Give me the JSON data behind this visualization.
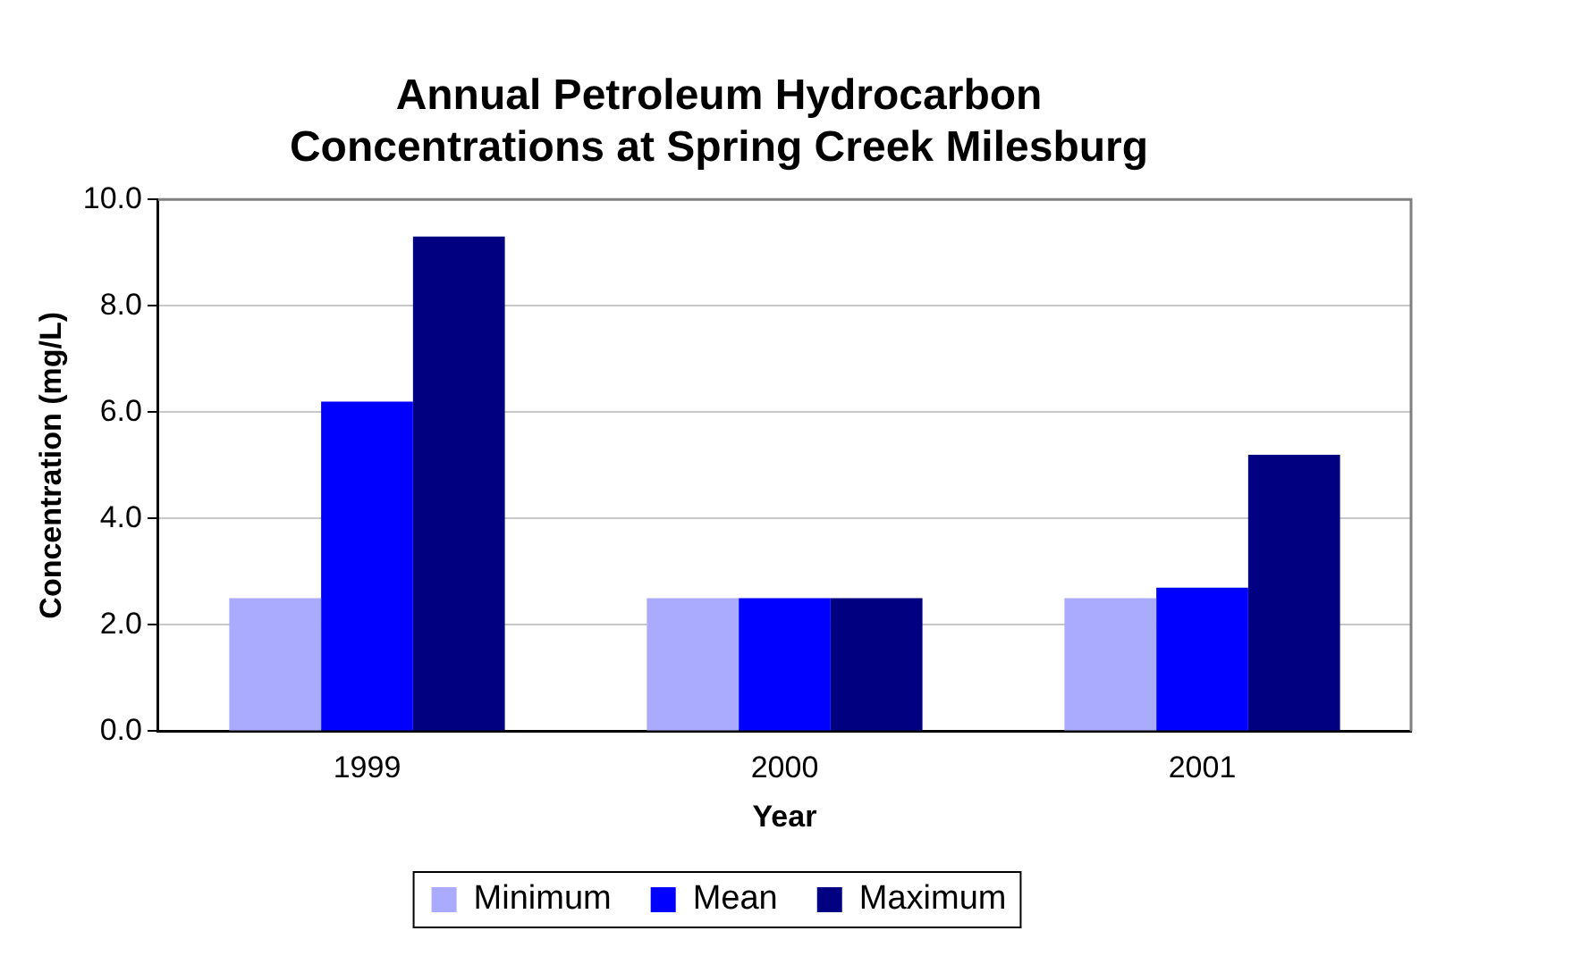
{
  "chart_data": {
    "type": "bar",
    "title": "Annual Petroleum Hydrocarbon Concentrations at Spring Creek Milesburg",
    "xlabel": "Year",
    "ylabel": "Concentration (mg/L)",
    "categories": [
      "1999",
      "2000",
      "2001"
    ],
    "series": [
      {
        "name": "Minimum",
        "color": "#aaaaff",
        "values": [
          2.5,
          2.5,
          2.5
        ]
      },
      {
        "name": "Mean",
        "color": "#0000ff",
        "values": [
          6.2,
          2.5,
          2.7
        ]
      },
      {
        "name": "Maximum",
        "color": "#000080",
        "values": [
          9.3,
          2.5,
          5.2
        ]
      }
    ],
    "ylim": [
      0,
      10
    ],
    "yticks": [
      {
        "value": 0,
        "label": "0.0"
      },
      {
        "value": 2,
        "label": "2.0"
      },
      {
        "value": 4,
        "label": "4.0"
      },
      {
        "value": 6,
        "label": "6.0"
      },
      {
        "value": 8,
        "label": "8.0"
      },
      {
        "value": 10,
        "label": "10.0"
      }
    ],
    "grid": "y",
    "legend": "bottom"
  }
}
